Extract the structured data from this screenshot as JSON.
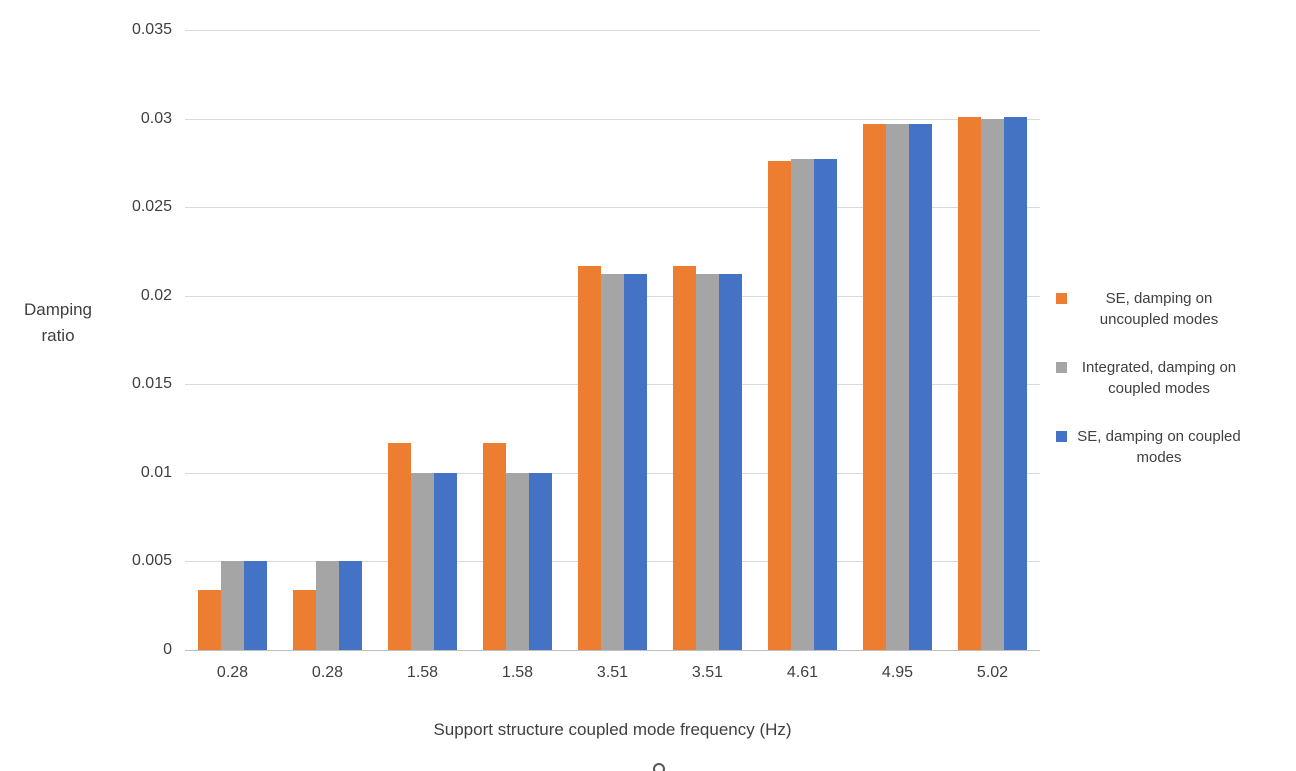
{
  "chart_data": {
    "type": "bar",
    "title": "",
    "xlabel": "Support structure coupled mode frequency (Hz)",
    "ylabel": "Damping ratio",
    "ylabel_lines": [
      "Damping",
      "ratio"
    ],
    "categories": [
      "0.28",
      "0.28",
      "1.58",
      "1.58",
      "3.51",
      "3.51",
      "4.61",
      "4.95",
      "5.02"
    ],
    "series": [
      {
        "name": "SE, damping on uncoupled modes",
        "color": "#ED7D31",
        "values": [
          0.0034,
          0.0034,
          0.0117,
          0.0117,
          0.0217,
          0.0217,
          0.0276,
          0.0297,
          0.0301
        ]
      },
      {
        "name": "Integrated, damping on coupled modes",
        "color": "#A5A5A5",
        "values": [
          0.005,
          0.005,
          0.01,
          0.01,
          0.0212,
          0.0212,
          0.0277,
          0.0297,
          0.03
        ]
      },
      {
        "name": "SE, damping on coupled modes",
        "color": "#4472C4",
        "values": [
          0.005,
          0.005,
          0.01,
          0.01,
          0.0212,
          0.0212,
          0.0277,
          0.0297,
          0.0301
        ]
      }
    ],
    "ylim": [
      0,
      0.035
    ],
    "ytick_step": 0.005,
    "yticks": [
      "0",
      "0.005",
      "0.01",
      "0.015",
      "0.02",
      "0.025",
      "0.03",
      "0.035"
    ],
    "grid": true,
    "legend_position": "right"
  }
}
